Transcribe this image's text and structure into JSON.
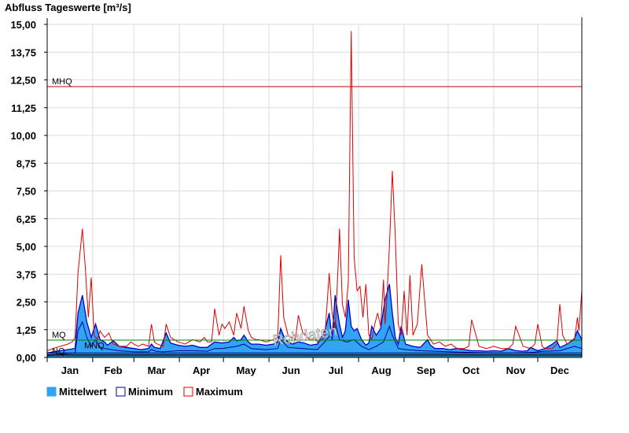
{
  "chart_data": {
    "type": "area",
    "title": "Abfluss Tageswerte [m³/s]",
    "ylim": [
      0,
      15
    ],
    "y_ticks": [
      "15,00",
      "13,75",
      "12,50",
      "11,25",
      "10,00",
      "8,75",
      "7,50",
      "6,25",
      "5,00",
      "3,75",
      "2,50",
      "1,25",
      "0,00"
    ],
    "y_tick_values": [
      15,
      13.75,
      12.5,
      11.25,
      10,
      8.75,
      7.5,
      6.25,
      5,
      3.75,
      2.5,
      1.25,
      0
    ],
    "categories": [
      "Jan",
      "Feb",
      "Mar",
      "Apr",
      "May",
      "Jun",
      "Jul",
      "Aug",
      "Sep",
      "Oct",
      "Nov",
      "Dec"
    ],
    "grid": true,
    "watermark": "Rohdaten",
    "reference_lines": [
      {
        "label": "MHQ",
        "value": 12.2,
        "color": "#cc0000"
      },
      {
        "label": "MQ",
        "value": 0.78,
        "color": "#008000"
      },
      {
        "label": "NQ",
        "value": 0.12,
        "color": "#000000"
      },
      {
        "label": "MNQ",
        "value": 0.2,
        "color": "#000080"
      }
    ],
    "legend": {
      "position": "bottom-left",
      "items": [
        {
          "label": "Mittelwert",
          "color": "#33a3f5"
        },
        {
          "label": "Minimum",
          "color": "#00009c"
        },
        {
          "label": "Maximum",
          "color": "#dd0000"
        }
      ]
    },
    "series": [
      {
        "name": "Mittelwert",
        "color": "#33a3f5",
        "x": [
          1,
          5,
          10,
          15,
          20,
          22,
          25,
          28,
          31,
          34,
          37,
          40,
          42,
          46,
          50,
          55,
          60,
          65,
          70,
          72,
          74,
          78,
          82,
          85,
          90,
          95,
          100,
          105,
          110,
          115,
          120,
          125,
          128,
          130,
          133,
          135,
          138,
          140,
          145,
          150,
          155,
          158,
          160,
          163,
          165,
          168,
          172,
          176,
          180,
          185,
          190,
          193,
          195,
          197,
          200,
          202,
          204,
          206,
          208,
          210,
          212,
          215,
          218,
          220,
          222,
          225,
          228,
          231,
          234,
          236,
          238,
          240,
          242,
          245,
          250,
          255,
          260,
          262,
          265,
          270,
          275,
          280,
          285,
          290,
          295,
          300,
          305,
          310,
          315,
          320,
          325,
          328,
          330,
          335,
          340,
          345,
          348,
          350,
          355,
          360,
          362,
          365
        ],
        "values": [
          0.2,
          0.25,
          0.3,
          0.35,
          0.4,
          2.0,
          2.8,
          1.6,
          0.9,
          1.5,
          0.8,
          0.7,
          0.55,
          0.75,
          0.5,
          0.45,
          0.4,
          0.35,
          0.4,
          0.6,
          0.45,
          0.4,
          1.1,
          0.65,
          0.55,
          0.5,
          0.55,
          0.45,
          0.45,
          0.7,
          0.65,
          0.7,
          0.9,
          0.75,
          0.8,
          1.0,
          0.7,
          0.6,
          0.6,
          0.55,
          0.6,
          0.7,
          1.3,
          0.8,
          0.7,
          0.6,
          0.7,
          0.65,
          0.55,
          0.6,
          1.2,
          2.0,
          0.8,
          2.8,
          1.5,
          0.9,
          1.2,
          2.6,
          1.4,
          1.2,
          1.3,
          0.8,
          0.55,
          0.65,
          1.4,
          1.0,
          1.3,
          2.6,
          3.3,
          2.0,
          0.9,
          0.6,
          1.4,
          0.6,
          0.5,
          0.45,
          0.8,
          0.55,
          0.4,
          0.4,
          0.35,
          0.4,
          0.35,
          0.3,
          0.3,
          0.28,
          0.3,
          0.28,
          0.4,
          0.3,
          0.28,
          0.3,
          0.45,
          0.3,
          0.4,
          0.6,
          0.75,
          0.45,
          0.6,
          0.85,
          1.2,
          0.8
        ]
      },
      {
        "name": "Minimum",
        "color": "#00009c",
        "x": [
          1,
          5,
          10,
          15,
          20,
          22,
          25,
          28,
          31,
          34,
          37,
          40,
          45,
          50,
          60,
          70,
          72,
          75,
          80,
          90,
          100,
          110,
          115,
          120,
          125,
          130,
          135,
          140,
          150,
          158,
          160,
          165,
          175,
          185,
          190,
          195,
          197,
          200,
          205,
          210,
          215,
          220,
          225,
          230,
          234,
          236,
          240,
          245,
          255,
          265,
          275,
          290,
          305,
          320,
          330,
          340,
          350,
          360,
          365
        ],
        "values": [
          0.1,
          0.12,
          0.15,
          0.18,
          0.2,
          1.2,
          1.6,
          0.9,
          0.5,
          0.8,
          0.45,
          0.4,
          0.35,
          0.3,
          0.25,
          0.25,
          0.35,
          0.28,
          0.25,
          0.3,
          0.3,
          0.28,
          0.4,
          0.4,
          0.45,
          0.5,
          0.6,
          0.4,
          0.35,
          0.4,
          0.8,
          0.45,
          0.4,
          0.35,
          0.7,
          1.1,
          1.6,
          0.8,
          0.7,
          0.8,
          0.5,
          0.35,
          0.5,
          0.7,
          1.4,
          1.0,
          0.4,
          0.35,
          0.3,
          0.28,
          0.25,
          0.22,
          0.2,
          0.2,
          0.22,
          0.28,
          0.3,
          0.5,
          0.4
        ]
      },
      {
        "name": "Maximum",
        "color": "#dd0000",
        "x": [
          1,
          5,
          10,
          15,
          18,
          20,
          22,
          25,
          27,
          29,
          31,
          33,
          35,
          37,
          40,
          43,
          46,
          50,
          55,
          58,
          60,
          63,
          66,
          70,
          72,
          74,
          76,
          80,
          82,
          85,
          90,
          95,
          100,
          105,
          108,
          110,
          113,
          115,
          118,
          120,
          122,
          125,
          128,
          130,
          133,
          135,
          138,
          140,
          143,
          145,
          150,
          155,
          158,
          160,
          162,
          165,
          170,
          172,
          175,
          180,
          183,
          185,
          188,
          190,
          193,
          195,
          197,
          199,
          200,
          202,
          204,
          206,
          208,
          210,
          212,
          214,
          216,
          218,
          220,
          222,
          224,
          226,
          228,
          230,
          231,
          232,
          234,
          236,
          238,
          240,
          242,
          244,
          246,
          248,
          250,
          253,
          256,
          260,
          262,
          264,
          268,
          272,
          276,
          280,
          285,
          288,
          290,
          295,
          300,
          305,
          310,
          315,
          318,
          320,
          325,
          330,
          333,
          335,
          338,
          340,
          345,
          348,
          350,
          352,
          355,
          360,
          362,
          363,
          365
        ],
        "values": [
          0.3,
          0.4,
          0.5,
          0.6,
          0.7,
          0.9,
          3.8,
          5.8,
          4.0,
          1.8,
          3.6,
          1.0,
          0.8,
          1.2,
          0.9,
          1.1,
          0.6,
          0.5,
          0.5,
          0.7,
          0.6,
          0.5,
          0.6,
          0.5,
          1.5,
          0.7,
          0.6,
          0.5,
          1.5,
          0.9,
          0.7,
          0.6,
          0.8,
          0.7,
          0.9,
          0.7,
          0.7,
          2.2,
          1.0,
          1.5,
          1.3,
          1.6,
          1.0,
          2.0,
          1.3,
          2.3,
          1.2,
          0.9,
          0.8,
          0.8,
          0.7,
          0.8,
          0.9,
          4.6,
          1.8,
          1.0,
          0.8,
          1.9,
          1.1,
          0.8,
          0.9,
          0.7,
          0.8,
          0.9,
          3.8,
          2.0,
          1.2,
          4.0,
          5.8,
          2.4,
          1.8,
          3.4,
          14.7,
          4.5,
          3.0,
          3.2,
          1.8,
          3.3,
          1.0,
          0.8,
          1.5,
          2.0,
          1.4,
          3.5,
          1.5,
          2.3,
          5.0,
          8.4,
          5.5,
          1.5,
          1.0,
          3.0,
          1.0,
          3.7,
          1.0,
          1.5,
          4.2,
          1.0,
          0.8,
          0.6,
          0.7,
          0.5,
          0.6,
          0.4,
          0.4,
          0.5,
          1.7,
          0.5,
          0.4,
          0.5,
          0.4,
          0.4,
          0.6,
          1.4,
          0.5,
          0.4,
          0.6,
          1.5,
          0.5,
          0.4,
          0.4,
          0.6,
          2.4,
          1.0,
          0.6,
          0.8,
          1.8,
          1.2,
          3.0
        ]
      }
    ]
  }
}
